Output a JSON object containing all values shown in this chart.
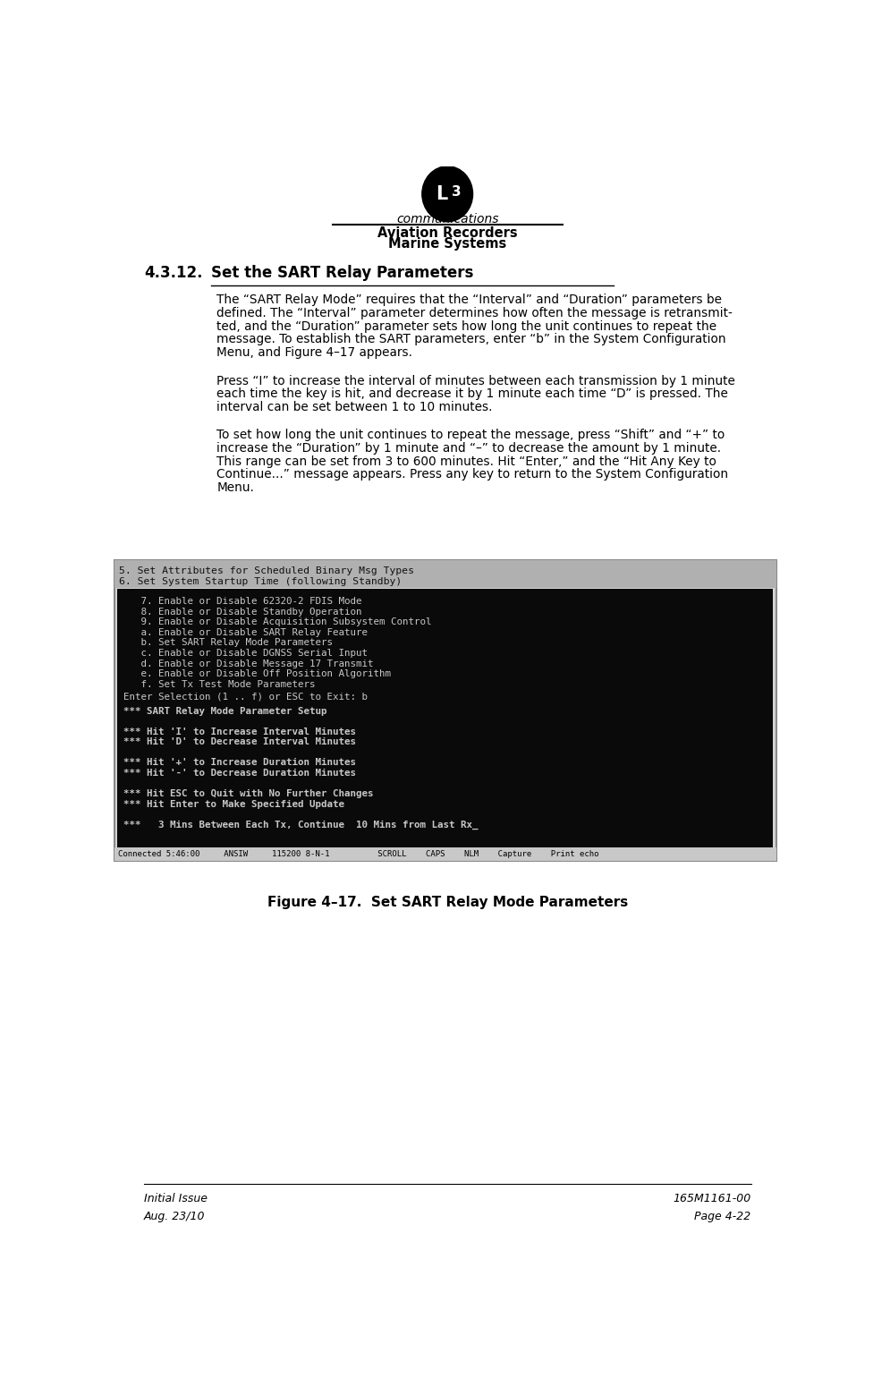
{
  "page_width": 9.76,
  "page_height": 15.5,
  "bg_color": "#ffffff",
  "header_company1": "Aviation Recorders",
  "header_company2": "Marine Systems",
  "section_number": "4.3.12.",
  "section_title": "Set the SART Relay Parameters",
  "para1_lines": [
    "The “SART Relay Mode” requires that the “Interval” and “Duration” parameters be",
    "defined. The “Interval” parameter determines how often the message is retransmit-",
    "ted, and the “Duration” parameter sets how long the unit continues to repeat the",
    "message. To establish the SART parameters, enter “b” in the System Configuration",
    "Menu, and Figure 4–17 appears."
  ],
  "para2_lines": [
    "Press “I” to increase the interval of minutes between each transmission by 1 minute",
    "each time the key is hit, and decrease it by 1 minute each time “D” is pressed. The",
    "interval can be set between 1 to 10 minutes."
  ],
  "para3_lines": [
    "To set how long the unit continues to repeat the message, press “Shift” and “+” to",
    "increase the “Duration” by 1 minute and “–” to decrease the amount by 1 minute.",
    "This range can be set from 3 to 600 minutes. Hit “Enter,” and the “Hit Any Key to",
    "Continue...” message appears. Press any key to return to the System Configuration",
    "Menu."
  ],
  "terminal_header_lines": [
    "5. Set Attributes for Scheduled Binary Msg Types",
    "6. Set System Startup Time (following Standby)"
  ],
  "terminal_menu_lines": [
    "   7. Enable or Disable 62320-2 FDIS Mode",
    "   8. Enable or Disable Standby Operation",
    "   9. Enable or Disable Acquisition Subsystem Control",
    "   a. Enable or Disable SART Relay Feature",
    "   b. Set SART Relay Mode Parameters",
    "   c. Enable or Disable DGNSS Serial Input",
    "   d. Enable or Disable Message 17 Transmit",
    "   e. Enable or Disable Off Position Algorithm",
    "   f. Set Tx Test Mode Parameters"
  ],
  "terminal_prompt": "Enter Selection (1 .. f) or ESC to Exit: b",
  "terminal_sart_lines": [
    "*** SART Relay Mode Parameter Setup",
    "",
    "*** Hit 'I' to Increase Interval Minutes",
    "*** Hit 'D' to Decrease Interval Minutes",
    "",
    "*** Hit '+' to Increase Duration Minutes",
    "*** Hit '-' to Decrease Duration Minutes",
    "",
    "*** Hit ESC to Quit with No Further Changes",
    "*** Hit Enter to Make Specified Update",
    "",
    "***   3 Mins Between Each Tx, Continue  10 Mins from Last Rx_"
  ],
  "terminal_status_bar": "Connected 5:46:00     ANSIW     115200 8-N-1          SCROLL    CAPS    NLM    Capture    Print echo",
  "figure_caption": "Figure 4–17.  Set SART Relay Mode Parameters",
  "footer_left1": "Initial Issue",
  "footer_left2": "Aug. 23/10",
  "footer_right1": "165M1161-00",
  "footer_right2": "Page 4-22"
}
